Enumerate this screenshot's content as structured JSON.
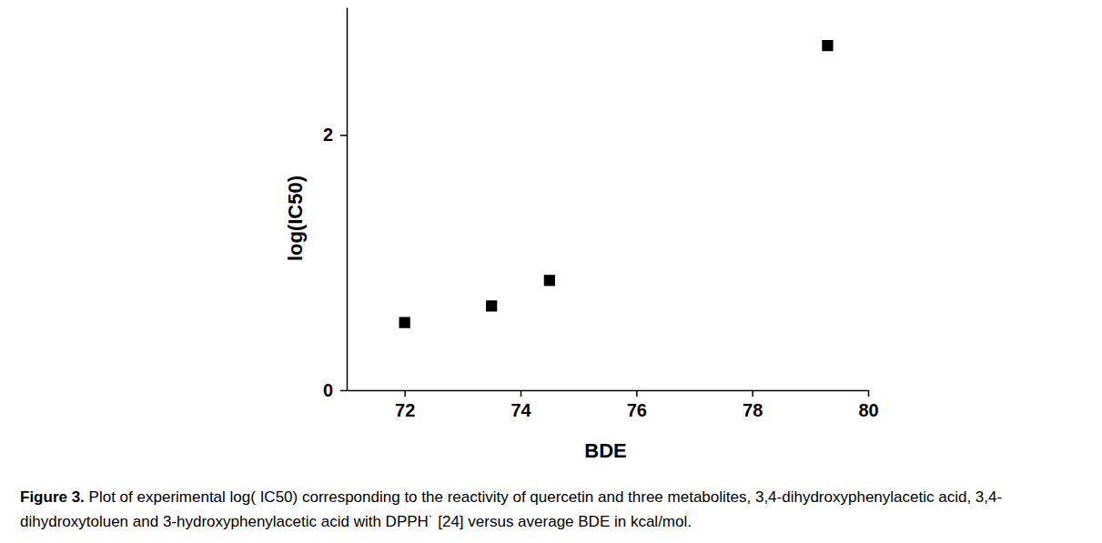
{
  "chart_data": {
    "type": "scatter",
    "x_label": "BDE",
    "y_label": "log(IC50)",
    "caption_label": "Figure 3.",
    "caption": "Plot of experimental log( IC50) corresponding to the reactivity of quercetin and three metabolites, 3,4-dihydroxyphenylacetic acid, 3,4-dihydroxytoluen and 3-hydroxyphenylacetic acid with DPPH˙ [24] versus average BDE in kcal/mol.",
    "x": [
      72,
      73.5,
      74.5,
      79.3
    ],
    "values": [
      0.53,
      0.66,
      0.86,
      2.7
    ],
    "color": "#000000",
    "marker": "square",
    "xlim": [
      71,
      80
    ],
    "xticks": [
      72,
      74,
      76,
      78,
      80
    ],
    "ylim": [
      0,
      3
    ],
    "yticks": [
      0,
      2
    ],
    "grid": false
  }
}
